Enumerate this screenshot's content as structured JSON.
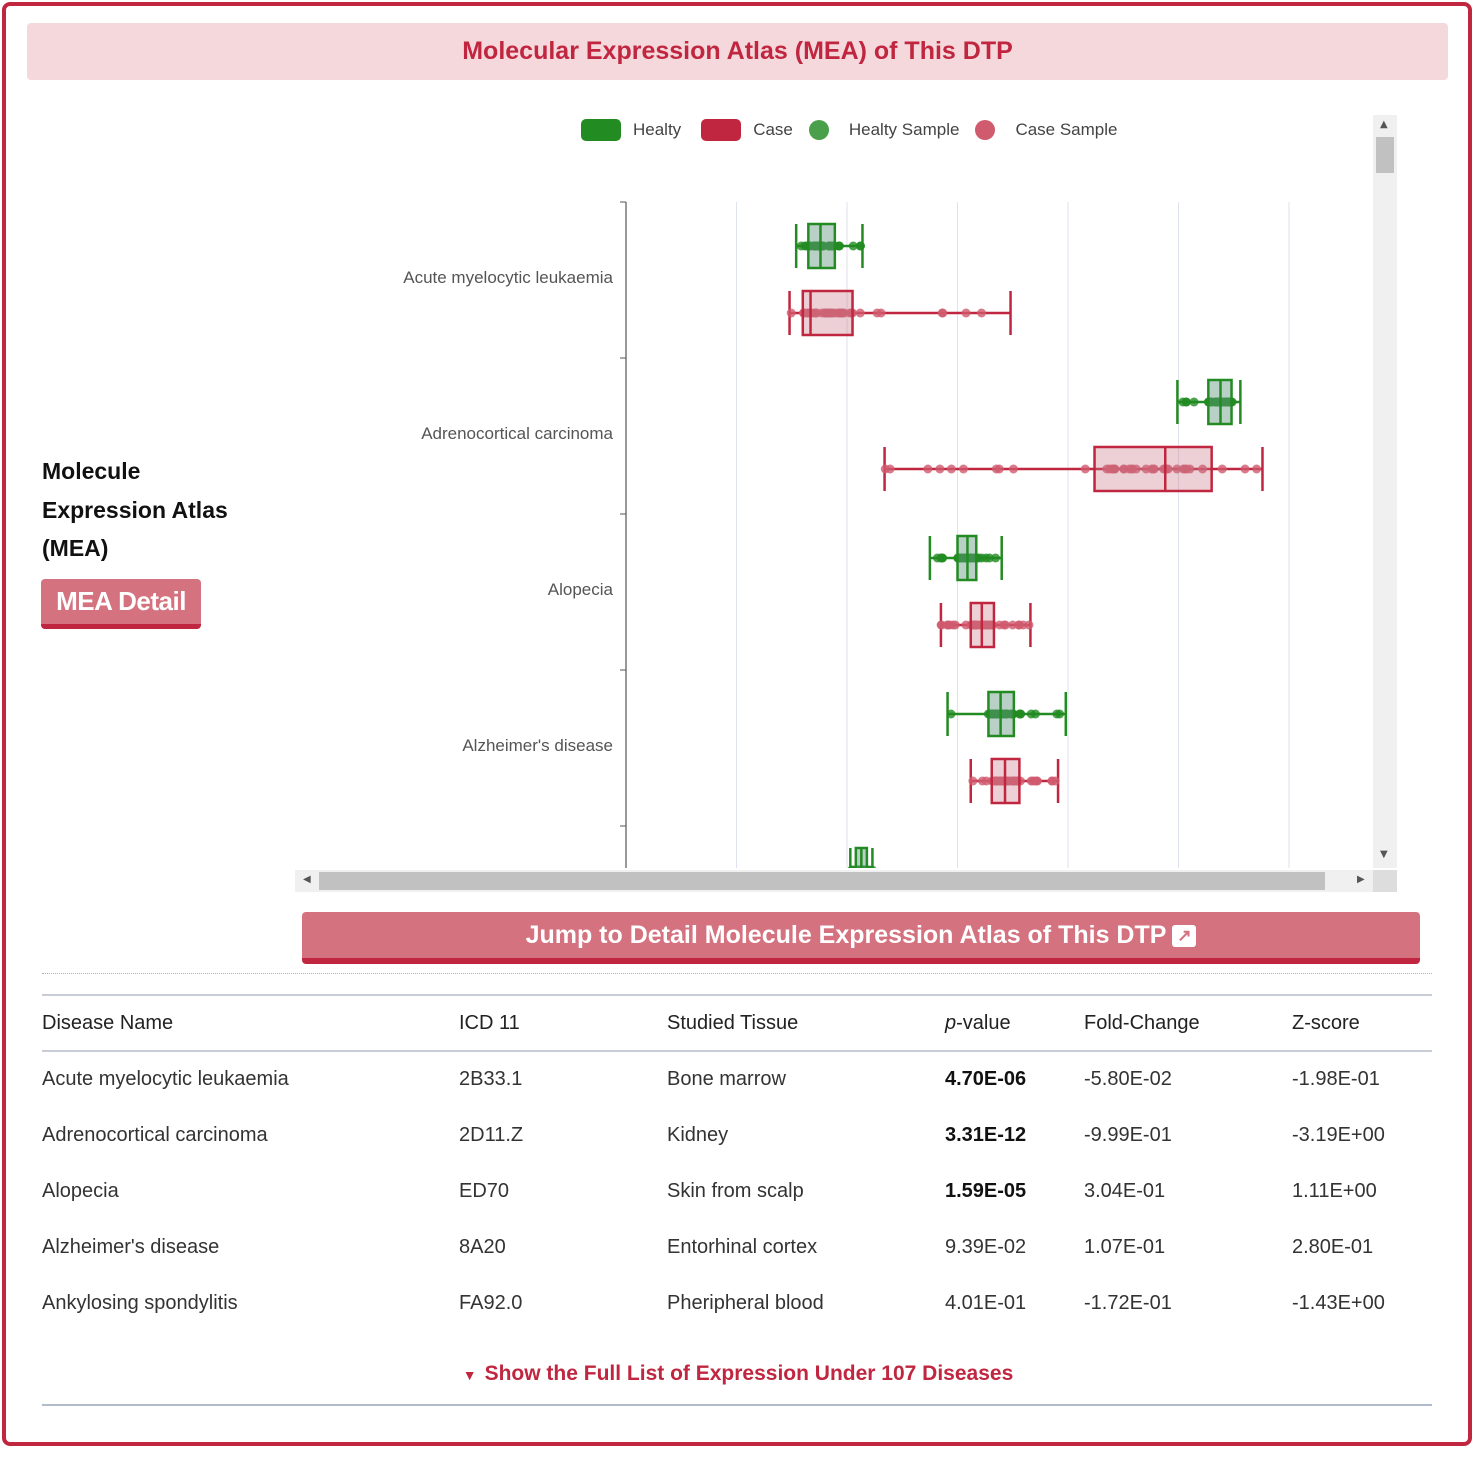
{
  "header": {
    "title": "Molecular Expression Atlas (MEA) of This DTP"
  },
  "sidebar": {
    "title_lines": [
      "Molecule",
      "Expression Atlas",
      "(MEA)"
    ],
    "detail_button": "MEA Detail"
  },
  "colors": {
    "healthy": "#228b22",
    "case": "#c0263f",
    "healthy_sample": "#4aa04a",
    "case_sample": "#d05a6e",
    "accent": "#c0263f"
  },
  "chart_data": {
    "type": "boxplot",
    "orientation": "horizontal",
    "legend": [
      "Healty",
      "Case",
      "Healty Sample",
      "Case Sample"
    ],
    "legend_position": "top",
    "grid": true,
    "xlim": [
      0,
      6.2
    ],
    "categories": [
      "Acute myelocytic leukaemia",
      "Adrenocortical carcinoma",
      "Alopecia",
      "Alzheimer's disease",
      "Ankylosing spondylitis"
    ],
    "series": [
      {
        "name": "Healty",
        "boxes": [
          {
            "min": 1.54,
            "q1": 1.65,
            "median": 1.76,
            "q3": 1.89,
            "max": 2.14
          },
          {
            "min": 4.99,
            "q1": 5.27,
            "median": 5.38,
            "q3": 5.48,
            "max": 5.56
          },
          {
            "min": 2.75,
            "q1": 3.0,
            "median": 3.09,
            "q3": 3.17,
            "max": 3.4
          },
          {
            "min": 2.91,
            "q1": 3.28,
            "median": 3.39,
            "q3": 3.51,
            "max": 3.98
          },
          {
            "min": 2.03,
            "q1": 2.08,
            "median": 2.13,
            "q3": 2.18,
            "max": 2.23
          }
        ]
      },
      {
        "name": "Case",
        "boxes": [
          {
            "min": 1.48,
            "q1": 1.6,
            "median": 1.67,
            "q3": 2.05,
            "max": 3.48
          },
          {
            "min": 2.34,
            "q1": 4.24,
            "median": 4.88,
            "q3": 5.3,
            "max": 5.76
          },
          {
            "min": 2.85,
            "q1": 3.12,
            "median": 3.22,
            "q3": 3.33,
            "max": 3.66
          },
          {
            "min": 3.12,
            "q1": 3.31,
            "median": 3.43,
            "q3": 3.56,
            "max": 3.91
          },
          null
        ]
      }
    ]
  },
  "jump_button": {
    "label": "Jump to Detail Molecule Expression Atlas of This DTP",
    "icon": "external-link-icon"
  },
  "table": {
    "headers": {
      "disease": "Disease Name",
      "icd": "ICD 11",
      "tissue": "Studied Tissue",
      "p_prefix": "p",
      "p_suffix": "-value",
      "fold": "Fold-Change",
      "z": "Z-score"
    },
    "rows": [
      {
        "disease": "Acute myelocytic leukaemia",
        "icd": "2B33.1",
        "tissue": "Bone marrow",
        "p": "4.70E-06",
        "p_bold": true,
        "fold": "-5.80E-02",
        "z": "-1.98E-01"
      },
      {
        "disease": "Adrenocortical carcinoma",
        "icd": "2D11.Z",
        "tissue": "Kidney",
        "p": "3.31E-12",
        "p_bold": true,
        "fold": "-9.99E-01",
        "z": "-3.19E+00"
      },
      {
        "disease": "Alopecia",
        "icd": "ED70",
        "tissue": "Skin from scalp",
        "p": "1.59E-05",
        "p_bold": true,
        "fold": "3.04E-01",
        "z": "1.11E+00"
      },
      {
        "disease": "Alzheimer's disease",
        "icd": "8A20",
        "tissue": "Entorhinal cortex",
        "p": "9.39E-02",
        "p_bold": false,
        "fold": "1.07E-01",
        "z": "2.80E-01"
      },
      {
        "disease": "Ankylosing spondylitis",
        "icd": "FA92.0",
        "tissue": "Pheripheral blood",
        "p": "4.01E-01",
        "p_bold": false,
        "fold": "-1.72E-01",
        "z": "-1.43E+00"
      }
    ]
  },
  "show_more": {
    "label": "Show the Full List of Expression Under 107 Diseases"
  }
}
